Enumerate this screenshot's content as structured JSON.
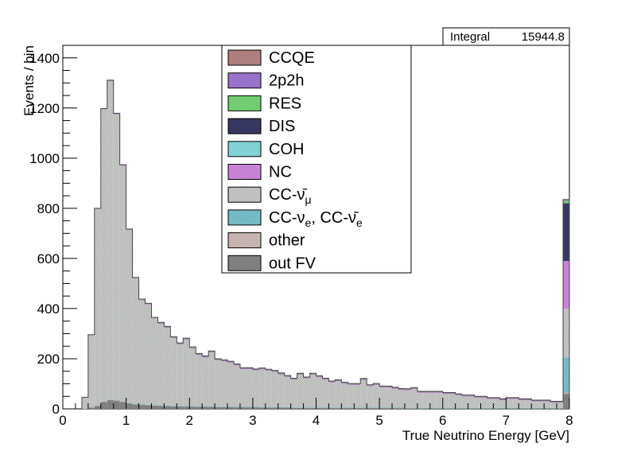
{
  "chart_data": {
    "type": "bar",
    "title": "",
    "xlabel": "True Neutrino Energy [GeV]",
    "ylabel": "Events / bin",
    "xlim": [
      0,
      8
    ],
    "ylim": [
      0,
      1450
    ],
    "xticks": [
      "0",
      "1",
      "2",
      "3",
      "4",
      "5",
      "6",
      "7",
      "8"
    ],
    "yticks": [
      "0",
      "200",
      "400",
      "600",
      "800",
      "1000",
      "1200",
      "1400"
    ],
    "stats": {
      "label": "Integral",
      "value": "15944.8"
    },
    "bin_width": 0.1,
    "x": [
      0.3,
      0.4,
      0.5,
      0.6,
      0.7,
      0.8,
      0.9,
      1.0,
      1.1,
      1.2,
      1.3,
      1.4,
      1.5,
      1.6,
      1.7,
      1.8,
      1.9,
      2.0,
      2.1,
      2.2,
      2.3,
      2.4,
      2.5,
      2.6,
      2.7,
      2.8,
      2.9,
      3.0,
      3.1,
      3.2,
      3.3,
      3.4,
      3.5,
      3.6,
      3.7,
      3.8,
      3.9,
      4.0,
      4.1,
      4.2,
      4.3,
      4.4,
      4.5,
      4.6,
      4.7,
      4.8,
      4.9,
      5.0,
      5.1,
      5.2,
      5.3,
      5.4,
      5.5,
      5.6,
      5.7,
      5.8,
      5.9,
      6.0,
      6.1,
      6.2,
      6.3,
      6.4,
      6.5,
      6.6,
      6.7,
      6.8,
      6.9,
      7.0,
      7.1,
      7.2,
      7.3,
      7.4,
      7.5,
      7.6,
      7.7,
      7.8,
      7.9
    ],
    "legend_position": "top-center",
    "series": [
      {
        "name": "out FV",
        "color": "#8c8c8c",
        "pattern": "dark",
        "values": [
          0,
          5,
          12,
          28,
          35,
          33,
          28,
          22,
          18,
          16,
          14,
          13,
          12,
          11,
          10,
          10,
          9,
          9,
          8,
          8,
          8,
          7,
          7,
          7,
          6,
          6,
          6,
          6,
          5,
          5,
          5,
          5,
          5,
          4,
          4,
          4,
          4,
          4,
          4,
          3,
          3,
          3,
          3,
          3,
          3,
          3,
          3,
          3,
          3,
          3,
          3,
          2,
          2,
          2,
          2,
          2,
          2,
          2,
          2,
          2,
          2,
          2,
          2,
          2,
          2,
          2,
          2,
          2,
          2,
          2,
          2,
          2,
          2,
          2,
          2,
          2,
          60
        ]
      },
      {
        "name": "other",
        "color": "#d9c4c0",
        "values": [
          0,
          0,
          0,
          0,
          0,
          0,
          0,
          0,
          0,
          0,
          0,
          0,
          0,
          0,
          0,
          0,
          0,
          0,
          0,
          0,
          0,
          0,
          0,
          0,
          0,
          0,
          0,
          0,
          0,
          0,
          0,
          0,
          0,
          0,
          0,
          0,
          0,
          0,
          0,
          0,
          0,
          0,
          0,
          0,
          0,
          0,
          0,
          0,
          0,
          0,
          0,
          0,
          0,
          0,
          0,
          0,
          0,
          0,
          0,
          0,
          0,
          0,
          0,
          0,
          0,
          0,
          0,
          0,
          0,
          0,
          0,
          0,
          0,
          0,
          0,
          0,
          5
        ]
      },
      {
        "name": "CC-νe, CC-ν̄e",
        "color": "#7fcbd6",
        "values": [
          0,
          0,
          1,
          1,
          1,
          1,
          1,
          1,
          2,
          2,
          2,
          2,
          2,
          2,
          2,
          2,
          2,
          2,
          2,
          2,
          2,
          2,
          2,
          2,
          2,
          2,
          2,
          2,
          2,
          2,
          2,
          2,
          2,
          2,
          2,
          2,
          2,
          2,
          2,
          2,
          2,
          2,
          2,
          2,
          2,
          2,
          2,
          2,
          2,
          2,
          2,
          2,
          2,
          2,
          2,
          2,
          2,
          2,
          2,
          2,
          2,
          2,
          2,
          2,
          2,
          2,
          2,
          2,
          2,
          2,
          2,
          2,
          2,
          2,
          2,
          2,
          140
        ]
      },
      {
        "name": "CC-ν̄μ",
        "color": "#d0d3d0",
        "values": [
          45,
          290,
          785,
          1165,
          1270,
          1140,
          940,
          690,
          500,
          415,
          400,
          345,
          325,
          310,
          270,
          245,
          265,
          230,
          205,
          195,
          215,
          185,
          180,
          175,
          165,
          150,
          150,
          145,
          150,
          145,
          140,
          130,
          120,
          110,
          130,
          115,
          130,
          120,
          110,
          100,
          105,
          95,
          90,
          90,
          110,
          85,
          90,
          80,
          80,
          75,
          70,
          70,
          75,
          60,
          60,
          60,
          60,
          55,
          55,
          50,
          45,
          45,
          40,
          40,
          35,
          35,
          30,
          35,
          35,
          30,
          30,
          25,
          25,
          25,
          20,
          20,
          195
        ]
      },
      {
        "name": "NC",
        "color": "#da8fe8",
        "values": [
          1,
          1,
          2,
          3,
          4,
          4,
          4,
          3,
          3,
          3,
          3,
          3,
          3,
          3,
          3,
          3,
          3,
          3,
          3,
          3,
          3,
          3,
          3,
          3,
          3,
          3,
          3,
          3,
          3,
          3,
          3,
          3,
          3,
          3,
          3,
          3,
          3,
          3,
          3,
          3,
          3,
          3,
          3,
          3,
          3,
          3,
          3,
          3,
          3,
          3,
          3,
          3,
          3,
          3,
          3,
          3,
          3,
          3,
          3,
          3,
          3,
          3,
          3,
          3,
          3,
          3,
          3,
          3,
          3,
          3,
          3,
          3,
          3,
          3,
          3,
          3,
          190
        ]
      },
      {
        "name": "COH",
        "color": "#8de6ea",
        "values": [
          0,
          0,
          0,
          0,
          0,
          0,
          0,
          0,
          0,
          0,
          0,
          0,
          0,
          0,
          0,
          0,
          0,
          0,
          0,
          0,
          0,
          0,
          0,
          0,
          0,
          0,
          0,
          0,
          0,
          0,
          0,
          0,
          0,
          0,
          0,
          0,
          0,
          0,
          0,
          0,
          0,
          0,
          0,
          0,
          0,
          0,
          0,
          0,
          0,
          0,
          0,
          0,
          0,
          0,
          0,
          0,
          0,
          0,
          0,
          0,
          0,
          0,
          0,
          0,
          0,
          0,
          0,
          0,
          0,
          0,
          0,
          0,
          0,
          0,
          0,
          0,
          0
        ]
      },
      {
        "name": "DIS",
        "color": "#3c3c6a",
        "pattern": "dark",
        "values": [
          0,
          0,
          0,
          0,
          0,
          0,
          0,
          0,
          0,
          0,
          0,
          0,
          1,
          1,
          1,
          1,
          1,
          1,
          1,
          1,
          1,
          1,
          1,
          1,
          1,
          1,
          1,
          1,
          1,
          1,
          1,
          1,
          1,
          1,
          1,
          1,
          1,
          1,
          1,
          1,
          1,
          1,
          1,
          1,
          1,
          1,
          1,
          1,
          1,
          1,
          1,
          1,
          1,
          1,
          1,
          1,
          1,
          1,
          1,
          1,
          1,
          1,
          1,
          1,
          1,
          1,
          1,
          1,
          1,
          1,
          1,
          1,
          1,
          1,
          1,
          1,
          230
        ]
      },
      {
        "name": "RES",
        "color": "#7ce07c",
        "values": [
          0,
          0,
          0,
          1,
          1,
          1,
          1,
          1,
          1,
          2,
          2,
          2,
          2,
          2,
          2,
          2,
          2,
          2,
          2,
          2,
          2,
          2,
          2,
          2,
          2,
          2,
          2,
          2,
          2,
          2,
          2,
          2,
          2,
          2,
          2,
          2,
          2,
          2,
          2,
          2,
          2,
          2,
          2,
          2,
          2,
          2,
          2,
          2,
          2,
          2,
          2,
          2,
          2,
          2,
          2,
          2,
          2,
          2,
          2,
          2,
          2,
          2,
          2,
          2,
          2,
          2,
          2,
          2,
          2,
          2,
          2,
          2,
          2,
          2,
          2,
          2,
          10
        ]
      },
      {
        "name": "2p2h",
        "color": "#a77de0",
        "values": [
          0,
          0,
          0,
          0,
          0,
          0,
          0,
          0,
          0,
          0,
          0,
          0,
          0,
          0,
          0,
          0,
          0,
          0,
          0,
          0,
          0,
          0,
          0,
          0,
          0,
          0,
          0,
          0,
          0,
          0,
          0,
          0,
          0,
          0,
          0,
          0,
          0,
          0,
          0,
          0,
          0,
          0,
          0,
          0,
          0,
          0,
          0,
          0,
          0,
          0,
          0,
          0,
          0,
          0,
          0,
          0,
          0,
          0,
          0,
          0,
          0,
          0,
          0,
          0,
          0,
          0,
          0,
          0,
          0,
          0,
          0,
          0,
          0,
          0,
          0,
          0,
          5
        ]
      },
      {
        "name": "CCQE",
        "color": "#c08a8a",
        "values": [
          0,
          0,
          0,
          0,
          0,
          0,
          0,
          0,
          0,
          0,
          0,
          0,
          0,
          0,
          0,
          0,
          0,
          0,
          0,
          0,
          0,
          0,
          0,
          0,
          0,
          0,
          0,
          0,
          0,
          0,
          0,
          0,
          0,
          0,
          0,
          0,
          0,
          0,
          0,
          0,
          0,
          0,
          0,
          0,
          0,
          0,
          0,
          0,
          0,
          0,
          0,
          0,
          0,
          0,
          0,
          0,
          0,
          0,
          0,
          0,
          0,
          0,
          0,
          0,
          0,
          0,
          0,
          0,
          0,
          0,
          0,
          0,
          0,
          0,
          0,
          0,
          0
        ]
      }
    ],
    "legend": [
      {
        "label": "CCQE",
        "sub": "",
        "color": "#c08a8a"
      },
      {
        "label": "2p2h",
        "sub": "",
        "color": "#a77de0"
      },
      {
        "label": "RES",
        "sub": "",
        "color": "#7ce07c"
      },
      {
        "label": "DIS",
        "sub": "",
        "color": "#3c3c6a"
      },
      {
        "label": "COH",
        "sub": "",
        "color": "#8de6ea"
      },
      {
        "label": "NC",
        "sub": "",
        "color": "#da8fe8"
      },
      {
        "label": "CC-ν̄",
        "sub": "μ",
        "color": "#d0d3d0"
      },
      {
        "label": "CC-ν",
        "sub": "e",
        "tail": ", CC-ν̄",
        "sub2": "e",
        "color": "#7fcbd6"
      },
      {
        "label": "other",
        "sub": "",
        "color": "#d9c4c0"
      },
      {
        "label": "out FV",
        "sub": "",
        "color": "#8c8c8c"
      }
    ]
  }
}
